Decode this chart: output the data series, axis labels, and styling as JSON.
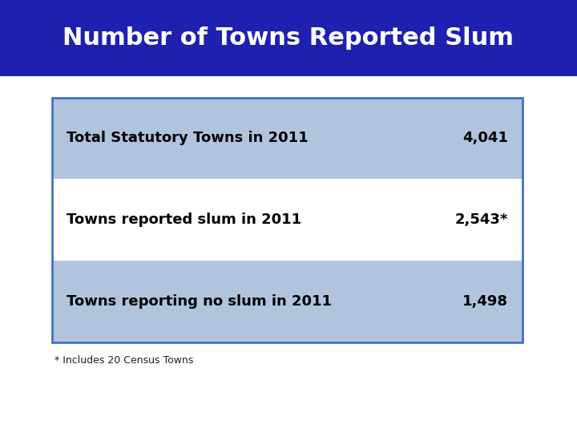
{
  "title": "Number of Towns Reported Slum",
  "title_bg_color": "#2020b0",
  "title_text_color": "#ffffff",
  "title_fontsize": 22,
  "rows": [
    {
      "label": "Total Statutory Towns in 2011",
      "value": "4,041",
      "bg_color": "#b0c4de"
    },
    {
      "label": "Towns reported slum in 2011",
      "value": "2,543*",
      "bg_color": "#ffffff"
    },
    {
      "label": "Towns reporting no slum in 2011",
      "value": "1,498",
      "bg_color": "#b0c4de"
    }
  ],
  "table_border_color": "#4472c4",
  "table_bg_color": "#ffffff",
  "footnote": "* Includes 20 Census Towns",
  "footnote_fontsize": 9,
  "row_fontsize": 13,
  "bg_color": "#ffffff"
}
